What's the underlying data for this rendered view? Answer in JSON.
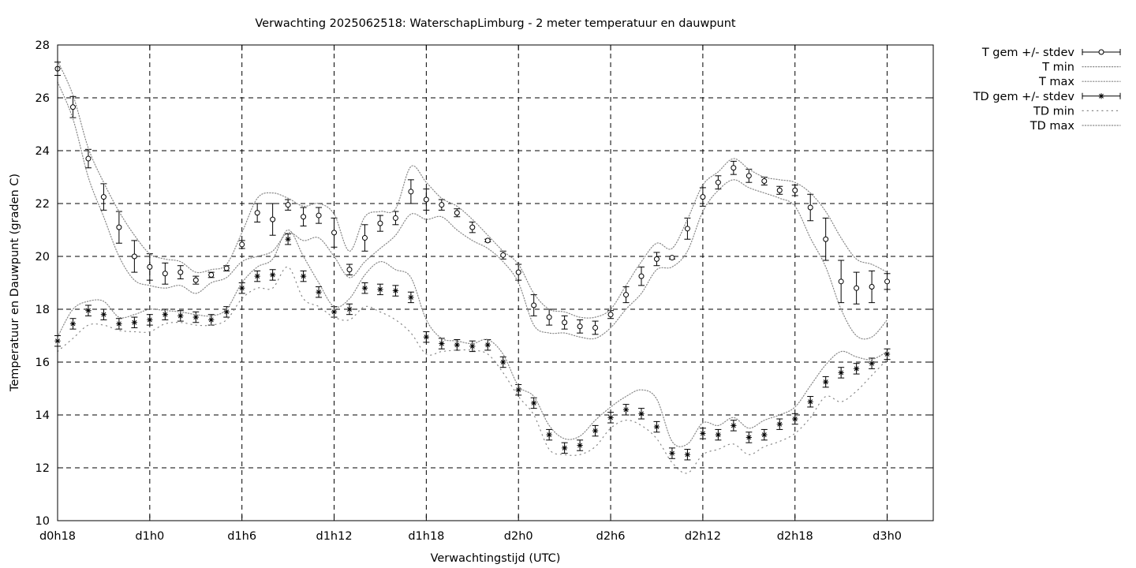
{
  "chart_data": {
    "type": "line",
    "title": "Verwachting 2025062518: WaterschapLimburg - 2 meter temperatuur en dauwpunt",
    "xlabel": "Verwachtingstijd (UTC)",
    "ylabel": "Temperatuur en Dauwpunt (graden C)",
    "xlim": [
      18,
      75
    ],
    "ylim": [
      10,
      28
    ],
    "grid": true,
    "legend_position": "outside-right-top",
    "x_ticks": [
      {
        "x": 18,
        "label": "d0h18"
      },
      {
        "x": 24,
        "label": "d1h0"
      },
      {
        "x": 30,
        "label": "d1h6"
      },
      {
        "x": 36,
        "label": "d1h12"
      },
      {
        "x": 42,
        "label": "d1h18"
      },
      {
        "x": 48,
        "label": "d2h0"
      },
      {
        "x": 54,
        "label": "d2h6"
      },
      {
        "x": 60,
        "label": "d2h12"
      },
      {
        "x": 66,
        "label": "d2h18"
      },
      {
        "x": 72,
        "label": "d3h0"
      }
    ],
    "y_ticks": [
      10,
      12,
      14,
      16,
      18,
      20,
      22,
      24,
      26,
      28
    ],
    "x": [
      18,
      19,
      20,
      21,
      22,
      23,
      24,
      25,
      26,
      27,
      28,
      29,
      30,
      31,
      32,
      33,
      34,
      35,
      36,
      37,
      38,
      39,
      40,
      41,
      42,
      43,
      44,
      45,
      46,
      47,
      48,
      49,
      50,
      51,
      52,
      53,
      54,
      55,
      56,
      57,
      58,
      59,
      60,
      61,
      62,
      63,
      64,
      65,
      66,
      67,
      68,
      69,
      70,
      71,
      72
    ],
    "series": [
      {
        "name": "T gem +/- stdev",
        "style": "errorbar-circle",
        "values": [
          27.1,
          25.65,
          23.7,
          22.25,
          21.1,
          20.0,
          19.6,
          19.35,
          19.4,
          19.1,
          19.3,
          19.55,
          20.45,
          21.65,
          21.4,
          21.95,
          21.5,
          21.55,
          20.9,
          19.5,
          20.7,
          21.25,
          21.45,
          22.45,
          22.15,
          21.95,
          21.65,
          21.1,
          20.6,
          20.05,
          19.4,
          18.15,
          17.7,
          17.5,
          17.35,
          17.3,
          17.8,
          18.55,
          19.25,
          19.9,
          19.95,
          21.05,
          22.25,
          22.8,
          23.35,
          23.05,
          22.85,
          22.5,
          22.5,
          21.85,
          20.65,
          19.05,
          18.8,
          18.85,
          19.05
        ],
        "stdev": [
          0.25,
          0.4,
          0.35,
          0.5,
          0.6,
          0.6,
          0.5,
          0.4,
          0.25,
          0.15,
          0.1,
          0.1,
          0.15,
          0.35,
          0.6,
          0.2,
          0.35,
          0.3,
          0.55,
          0.2,
          0.5,
          0.3,
          0.25,
          0.45,
          0.4,
          0.2,
          0.15,
          0.2,
          0.05,
          0.15,
          0.3,
          0.4,
          0.3,
          0.25,
          0.25,
          0.25,
          0.15,
          0.3,
          0.35,
          0.25,
          0.05,
          0.4,
          0.35,
          0.25,
          0.25,
          0.25,
          0.15,
          0.15,
          0.2,
          0.5,
          0.8,
          0.8,
          0.6,
          0.6,
          0.3
        ]
      },
      {
        "name": "T min",
        "style": "dotted",
        "values": [
          26.6,
          25.2,
          23.0,
          21.5,
          20.0,
          19.1,
          18.9,
          18.8,
          18.9,
          18.6,
          19.0,
          19.2,
          19.8,
          20.0,
          20.2,
          20.9,
          20.6,
          20.7,
          20.0,
          19.2,
          19.8,
          20.3,
          20.8,
          21.6,
          21.4,
          21.5,
          21.0,
          20.6,
          20.3,
          19.8,
          19.0,
          17.4,
          17.1,
          17.1,
          16.95,
          16.9,
          17.3,
          18.0,
          18.6,
          19.5,
          19.6,
          20.2,
          21.7,
          22.5,
          22.9,
          22.6,
          22.4,
          22.2,
          21.9,
          20.7,
          19.6,
          18.0,
          17.0,
          16.95,
          17.6
        ]
      },
      {
        "name": "T max",
        "style": "dotted",
        "values": [
          27.4,
          26.1,
          24.1,
          22.8,
          21.7,
          20.8,
          20.1,
          19.9,
          19.8,
          19.4,
          19.5,
          19.7,
          20.9,
          22.2,
          22.4,
          22.2,
          21.9,
          22.0,
          21.6,
          20.2,
          21.5,
          21.7,
          21.8,
          23.4,
          22.8,
          22.2,
          21.9,
          21.4,
          20.8,
          20.2,
          19.7,
          18.6,
          18.0,
          17.9,
          17.7,
          17.7,
          18.0,
          18.9,
          19.8,
          20.5,
          20.3,
          21.4,
          22.7,
          23.2,
          23.7,
          23.3,
          23.0,
          22.9,
          22.8,
          22.4,
          21.7,
          20.7,
          19.9,
          19.7,
          19.4
        ]
      },
      {
        "name": "TD gem +/- stdev",
        "style": "errorbar-star",
        "values": [
          16.8,
          17.45,
          17.95,
          17.8,
          17.45,
          17.5,
          17.6,
          17.8,
          17.75,
          17.7,
          17.6,
          17.9,
          18.8,
          19.25,
          19.3,
          20.65,
          19.25,
          18.65,
          17.9,
          18.0,
          18.8,
          18.75,
          18.7,
          18.45,
          16.95,
          16.7,
          16.65,
          16.6,
          16.65,
          16.0,
          14.95,
          14.45,
          13.25,
          12.75,
          12.85,
          13.4,
          13.9,
          14.2,
          14.05,
          13.55,
          12.55,
          12.5,
          13.3,
          13.25,
          13.6,
          13.15,
          13.25,
          13.65,
          13.85,
          14.5,
          15.25,
          15.6,
          15.75,
          15.95,
          16.3
        ]
      },
      {
        "name": "TD min",
        "style": "sparse-dotted",
        "values": [
          16.4,
          16.9,
          17.4,
          17.4,
          17.2,
          17.15,
          17.15,
          17.45,
          17.5,
          17.4,
          17.4,
          17.6,
          18.4,
          18.8,
          18.8,
          19.6,
          18.4,
          18.1,
          17.7,
          17.6,
          18.1,
          17.9,
          17.6,
          17.1,
          16.3,
          16.4,
          16.45,
          16.45,
          16.3,
          15.6,
          14.7,
          14.0,
          12.7,
          12.5,
          12.5,
          12.8,
          13.5,
          13.8,
          13.6,
          13.1,
          12.2,
          11.8,
          12.5,
          12.7,
          12.9,
          12.5,
          12.8,
          13.0,
          13.3,
          13.9,
          14.7,
          14.5,
          14.9,
          15.5,
          16.1
        ]
      },
      {
        "name": "TD max",
        "style": "dotted",
        "values": [
          16.95,
          18.0,
          18.3,
          18.3,
          17.7,
          17.8,
          18.0,
          17.95,
          17.9,
          17.8,
          17.75,
          18.0,
          19.0,
          19.6,
          19.9,
          21.0,
          20.0,
          19.0,
          18.1,
          18.4,
          19.3,
          19.8,
          19.5,
          19.2,
          17.6,
          16.9,
          16.8,
          16.7,
          16.85,
          16.3,
          15.1,
          14.7,
          13.6,
          13.1,
          13.2,
          13.8,
          14.3,
          14.7,
          14.95,
          14.6,
          13.0,
          12.9,
          13.7,
          13.6,
          13.9,
          13.5,
          13.8,
          14.0,
          14.3,
          15.1,
          15.9,
          16.4,
          16.2,
          16.1,
          16.4
        ]
      }
    ]
  }
}
